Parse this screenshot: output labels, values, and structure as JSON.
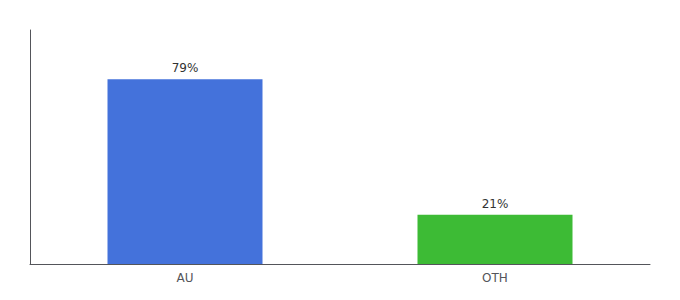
{
  "chart_data": {
    "type": "bar",
    "categories": [
      "AU",
      "OTH"
    ],
    "values": [
      79,
      21
    ],
    "value_labels": [
      "79%",
      "21%"
    ],
    "colors": [
      "#4472db",
      "#3dbb35"
    ],
    "ylim": [
      0,
      100
    ],
    "tick_labels": "x",
    "data_labels": true,
    "grid": false
  }
}
